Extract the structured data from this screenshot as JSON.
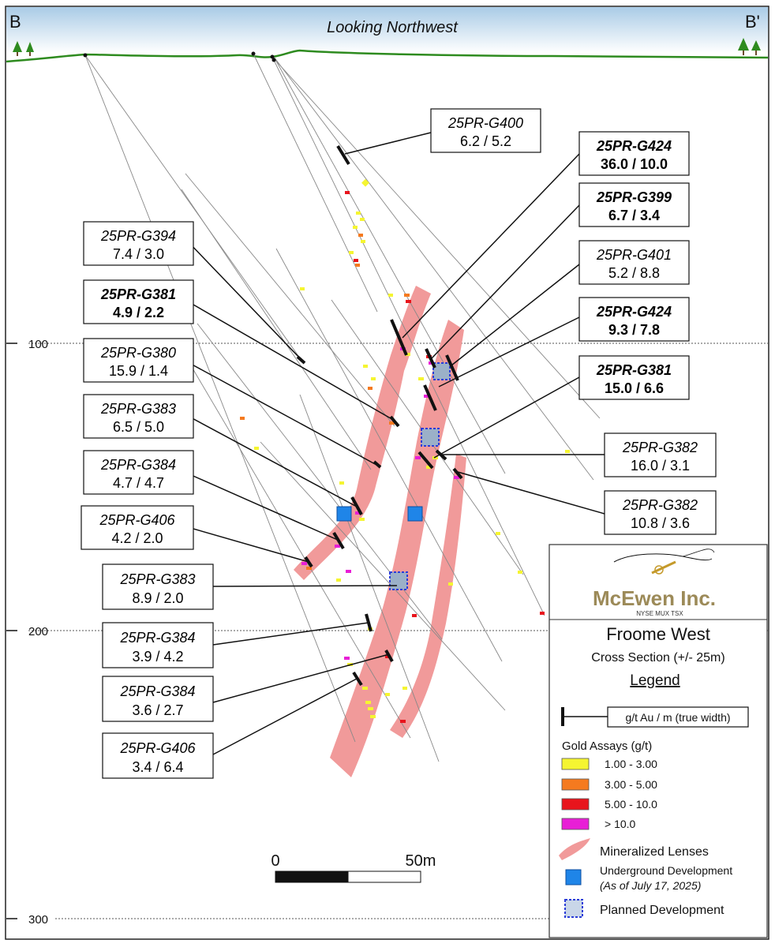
{
  "header": {
    "left_label": "B",
    "right_label": "B'",
    "title": "Looking Northwest"
  },
  "elevations": [
    {
      "label": "100"
    },
    {
      "label": "200"
    },
    {
      "label": "300"
    }
  ],
  "callouts": [
    {
      "hole": "25PR-G400",
      "value": "6.2 / 5.2",
      "bold": false
    },
    {
      "hole": "25PR-G424",
      "value": "36.0 / 10.0",
      "bold": true
    },
    {
      "hole": "25PR-G399",
      "value": "6.7 / 3.4",
      "bold": true
    },
    {
      "hole": "25PR-G401",
      "value": "5.2 / 8.8",
      "bold": false
    },
    {
      "hole": "25PR-G424",
      "value": "9.3 / 7.8",
      "bold": true
    },
    {
      "hole": "25PR-G381",
      "value": "15.0 / 6.6",
      "bold": true
    },
    {
      "hole": "25PR-G382",
      "value": "16.0 / 3.1",
      "bold": false
    },
    {
      "hole": "25PR-G382",
      "value": "10.8 / 3.6",
      "bold": false
    },
    {
      "hole": "25PR-G394",
      "value": "7.4 / 3.0",
      "bold": false
    },
    {
      "hole": "25PR-G381",
      "value": "4.9 / 2.2",
      "bold": true
    },
    {
      "hole": "25PR-G380",
      "value": "15.9 / 1.4",
      "bold": false
    },
    {
      "hole": "25PR-G383",
      "value": "6.5 / 5.0",
      "bold": false
    },
    {
      "hole": "25PR-G384",
      "value": "4.7 / 4.7",
      "bold": false
    },
    {
      "hole": "25PR-G406",
      "value": "4.2 / 2.0",
      "bold": false
    },
    {
      "hole": "25PR-G383",
      "value": "8.9 / 2.0",
      "bold": false
    },
    {
      "hole": "25PR-G384",
      "value": "3.9 / 4.2",
      "bold": false
    },
    {
      "hole": "25PR-G384",
      "value": "3.6 / 2.7",
      "bold": false
    },
    {
      "hole": "25PR-G406",
      "value": "3.4 / 6.4",
      "bold": false
    }
  ],
  "scale_bar": {
    "start": "0",
    "end": "50m"
  },
  "legend": {
    "company": "McEwen Inc.",
    "exchanges": "NYSE  MUX  TSX",
    "title": "Froome West",
    "subtitle": "Cross Section (+/- 25m)",
    "heading": "Legend",
    "intercept_label": "g/t Au / m (true width)",
    "assays_heading": "Gold Assays (g/t)",
    "assays": [
      {
        "label": "1.00 - 3.00",
        "color": "#f5f531"
      },
      {
        "label": "3.00 - 5.00",
        "color": "#f57a1f"
      },
      {
        "label": "5.00 - 10.0",
        "color": "#e8141c"
      },
      {
        "label": "> 10.0",
        "color": "#e81fd6"
      }
    ],
    "lens_label": "Mineralized Lenses",
    "lens_color": "#f19a9a",
    "ug_label": "Underground Development",
    "ug_note": "(As of July 17, 2025)",
    "ug_color": "#1f85e8",
    "planned_label": "Planned Development"
  }
}
